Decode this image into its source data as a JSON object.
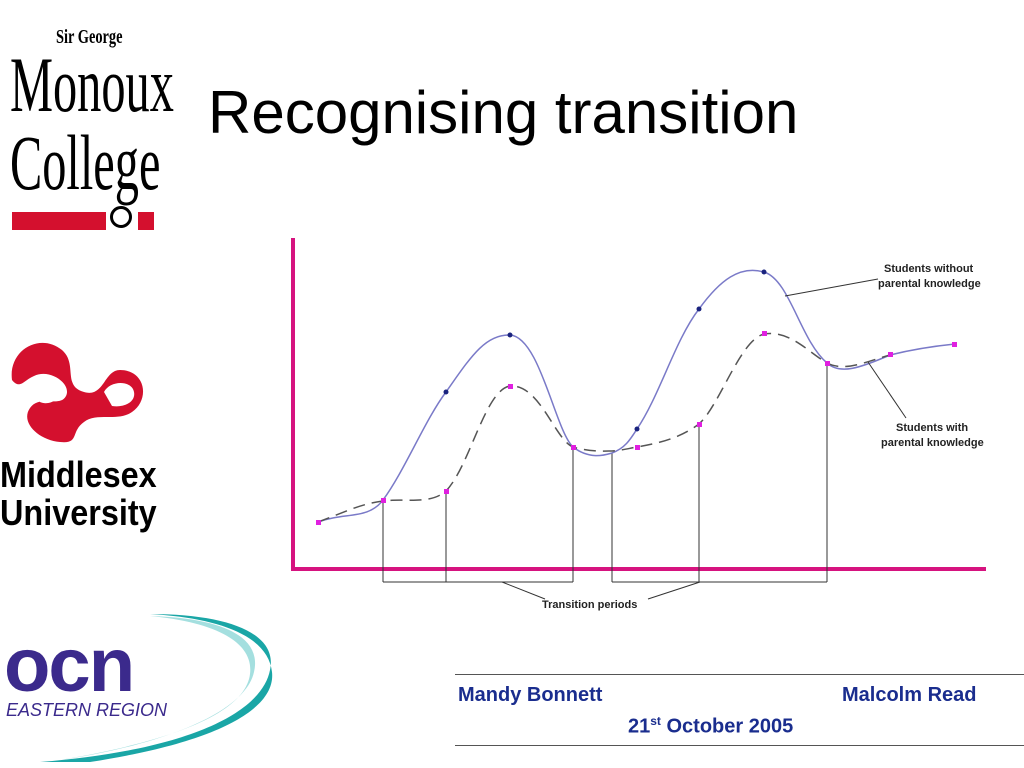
{
  "slide": {
    "title": "Recognising transition"
  },
  "logos": {
    "monoux": {
      "line1": "Sir George",
      "line2": "Monoux",
      "line3": "College",
      "color": "#d4102e"
    },
    "middlesex": {
      "line1": "Middlesex",
      "line2": "University",
      "color": "#d4102e"
    },
    "ocn": {
      "word": "ocn",
      "region": "EASTERN REGION",
      "color": "#3b2a8c",
      "swoosh_color": "#1aa6a6"
    }
  },
  "diagram": {
    "axis_color": "#d6137f",
    "labels": {
      "without": [
        "Students without",
        "parental knowledge"
      ],
      "with": [
        "Students with",
        "parental knowledge"
      ],
      "transition": "Transition periods"
    },
    "series": [
      {
        "id": "without",
        "style": "solid",
        "color": "#7a7ac8",
        "point_color": "#1a237e"
      },
      {
        "id": "with",
        "style": "dashed",
        "color": "#555555",
        "point_color": "#e020e0"
      }
    ]
  },
  "footer": {
    "left_name": "Mandy Bonnett",
    "right_name": "Malcolm Read",
    "date_day": "21",
    "date_suffix": "st",
    "date_rest": " October 2005",
    "color": "#1a2d8e"
  }
}
